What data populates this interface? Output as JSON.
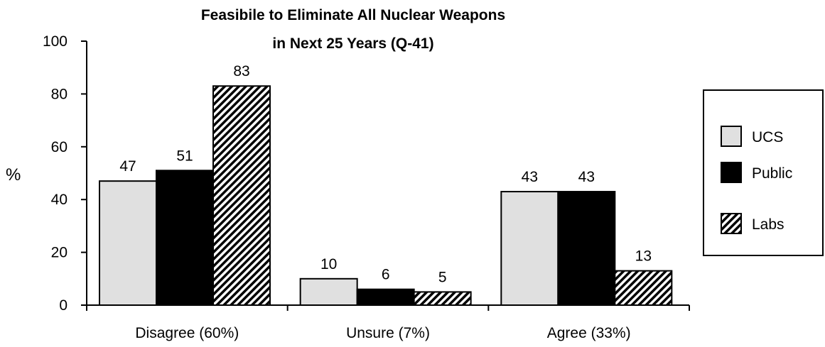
{
  "chart_data": {
    "type": "bar",
    "title_line1": "Feasibile to Eliminate All Nuclear Weapons",
    "title_line2": "in Next 25 Years (Q-41)",
    "xlabel": "",
    "ylabel": "%",
    "ylim": [
      0,
      100
    ],
    "yticks": [
      0,
      20,
      40,
      60,
      80,
      100
    ],
    "categories": [
      "Disagree (60%)",
      "Unsure (7%)",
      "Agree (33%)"
    ],
    "series": [
      {
        "name": "UCS",
        "values": [
          47,
          10,
          43
        ],
        "fill": "#e0e0e0",
        "pattern": "solid"
      },
      {
        "name": "Public",
        "values": [
          51,
          6,
          43
        ],
        "fill": "#000000",
        "pattern": "solid"
      },
      {
        "name": "Labs",
        "values": [
          83,
          5,
          13
        ],
        "fill": "#000000",
        "pattern": "diagonal-hatch"
      }
    ],
    "legend_position": "right",
    "grid": false
  }
}
